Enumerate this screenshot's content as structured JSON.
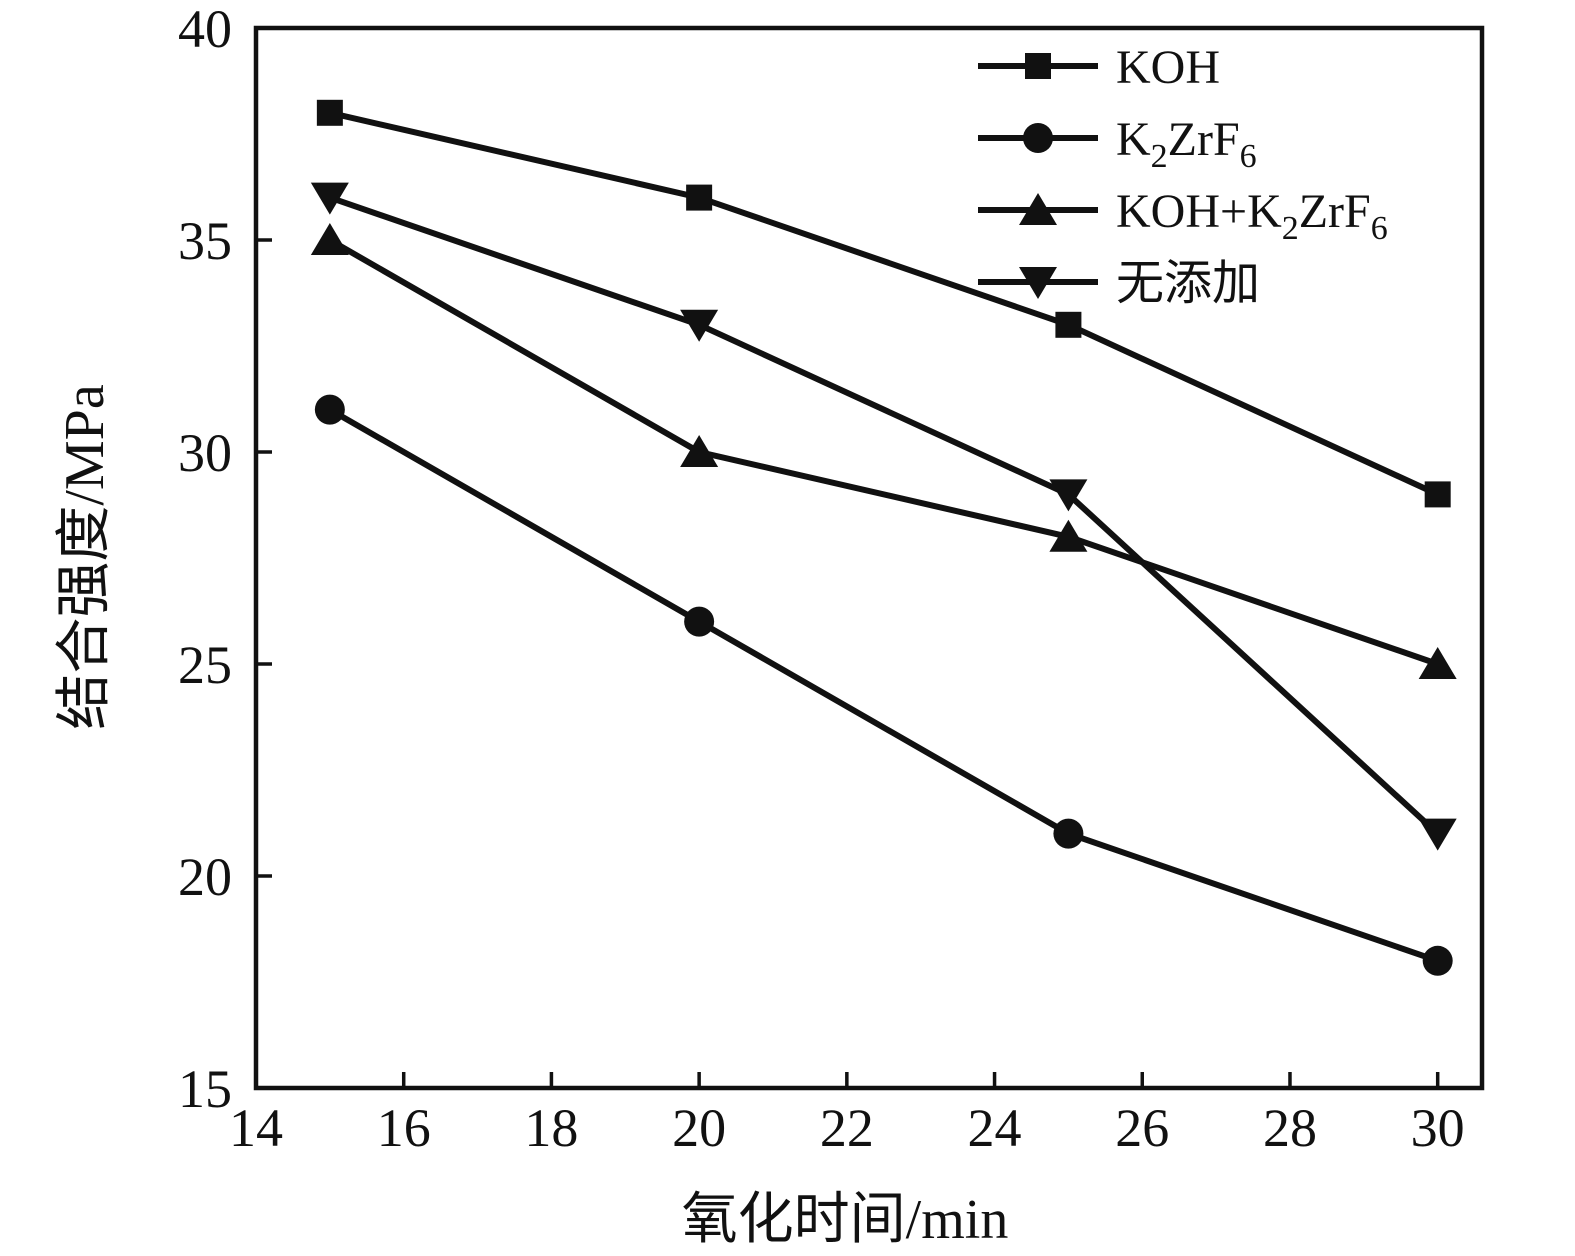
{
  "figure": {
    "background": "#ffffff",
    "ink_color": "#111111"
  },
  "chart_data": {
    "type": "line",
    "title": "",
    "xlabel": "氧化时间/min",
    "ylabel": "结合强度/MPa",
    "x": [
      15,
      20,
      25,
      30
    ],
    "xlim": [
      14,
      30.6
    ],
    "ylim": [
      15,
      40
    ],
    "xticks": [
      14,
      16,
      18,
      20,
      22,
      24,
      26,
      28,
      30
    ],
    "yticks": [
      15,
      20,
      25,
      30,
      35,
      40
    ],
    "grid": false,
    "legend_position": "top-right-inside",
    "series": [
      {
        "name": "KOH",
        "marker": "square",
        "color": "#111111",
        "values": [
          38,
          36,
          33,
          29
        ],
        "label_parts": [
          {
            "text": "KOH",
            "sub": false
          }
        ]
      },
      {
        "name": "K2ZrF6",
        "marker": "circle",
        "color": "#111111",
        "values": [
          31,
          26,
          21,
          18
        ],
        "label_parts": [
          {
            "text": "K",
            "sub": false
          },
          {
            "text": "2",
            "sub": true
          },
          {
            "text": "ZrF",
            "sub": false
          },
          {
            "text": "6",
            "sub": true
          }
        ]
      },
      {
        "name": "KOH+K2ZrF6",
        "marker": "triangle-up",
        "color": "#111111",
        "values": [
          35,
          30,
          28,
          25
        ],
        "label_parts": [
          {
            "text": "KOH+K",
            "sub": false
          },
          {
            "text": "2",
            "sub": true
          },
          {
            "text": "ZrF",
            "sub": false
          },
          {
            "text": "6",
            "sub": true
          }
        ]
      },
      {
        "name": "无添加",
        "marker": "triangle-down",
        "color": "#111111",
        "values": [
          36,
          33,
          29,
          21
        ],
        "label_parts": [
          {
            "text": "无添加",
            "sub": false
          }
        ]
      }
    ]
  }
}
